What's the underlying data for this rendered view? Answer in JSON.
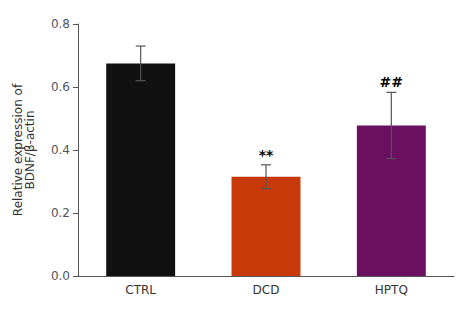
{
  "chart_data": {
    "type": "bar",
    "y_label": "Relative expression of\nBDNF/β-actin",
    "categories": [
      "CTRL",
      "DCD",
      "HPTQ"
    ],
    "values": [
      0.675,
      0.315,
      0.478
    ],
    "errors": [
      0.055,
      0.038,
      0.105
    ],
    "colors": [
      "#111111",
      "#C8390A",
      "#6B1060"
    ],
    "ylim": [
      0.0,
      0.8
    ],
    "yticks": [
      {
        "value": 0.0,
        "label": "0.0"
      },
      0.2,
      0.4,
      0.6,
      0.8
    ],
    "annotations": [
      {
        "text": "**",
        "x": "DCD",
        "y": 0.362
      },
      {
        "text": "##",
        "x": "HPTQ",
        "y": 0.595
      }
    ],
    "grid": false
  }
}
